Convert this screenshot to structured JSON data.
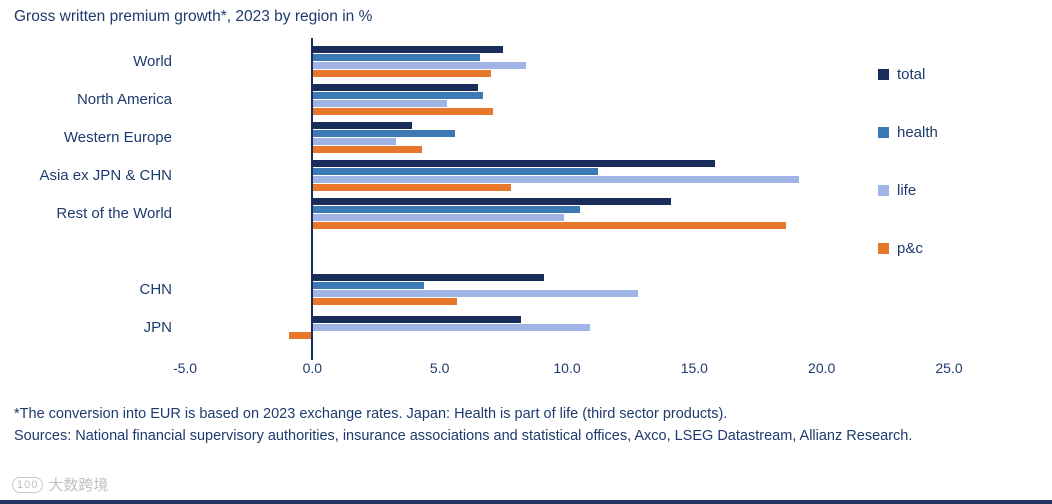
{
  "title": "Gross written premium growth*, 2023 by region in %",
  "chart_data": {
    "type": "bar",
    "orientation": "horizontal",
    "title": "Gross written premium growth*, 2023 by region in %",
    "categories": [
      "World",
      "North America",
      "Western Europe",
      "Asia ex JPN & CHN",
      "Rest of the World",
      "CHN",
      "JPN"
    ],
    "series": [
      {
        "name": "total",
        "color": "#1a2d5a",
        "values": [
          7.5,
          6.5,
          3.9,
          15.8,
          14.1,
          9.1,
          8.2
        ]
      },
      {
        "name": "health",
        "color": "#3d7ab5",
        "values": [
          6.6,
          6.7,
          5.6,
          11.2,
          10.5,
          4.4,
          null
        ]
      },
      {
        "name": "life",
        "color": "#9fb4e4",
        "values": [
          8.4,
          5.3,
          3.3,
          19.1,
          9.9,
          12.8,
          10.9
        ]
      },
      {
        "name": "p&c",
        "color": "#e8772e",
        "values": [
          7.0,
          7.1,
          4.3,
          7.8,
          18.6,
          5.7,
          -0.9
        ]
      }
    ],
    "xlim": [
      -5.0,
      25.0
    ],
    "x_ticks": [
      "-5.0",
      "0.0",
      "5.0",
      "10.0",
      "15.0",
      "20.0",
      "25.0"
    ],
    "x_tick_values": [
      -5,
      0,
      5,
      10,
      15,
      20,
      25
    ],
    "gap_after_index": 4,
    "grid": false,
    "legend_position": "right"
  },
  "legend": {
    "items": [
      {
        "label": "total",
        "color": "#1a2d5a"
      },
      {
        "label": "health",
        "color": "#3d7ab5"
      },
      {
        "label": "life",
        "color": "#9fb4e4"
      },
      {
        "label": "p&c",
        "color": "#e8772e"
      }
    ]
  },
  "footnotes": [
    "*The conversion into EUR is based on 2023 exchange rates. Japan: Health is part of life (third sector products).",
    "Sources: National financial supervisory authorities, insurance associations and statistical offices, Axco, LSEG Datastream, Allianz Research."
  ],
  "watermark": {
    "logo": "100",
    "text": "大数跨境"
  }
}
